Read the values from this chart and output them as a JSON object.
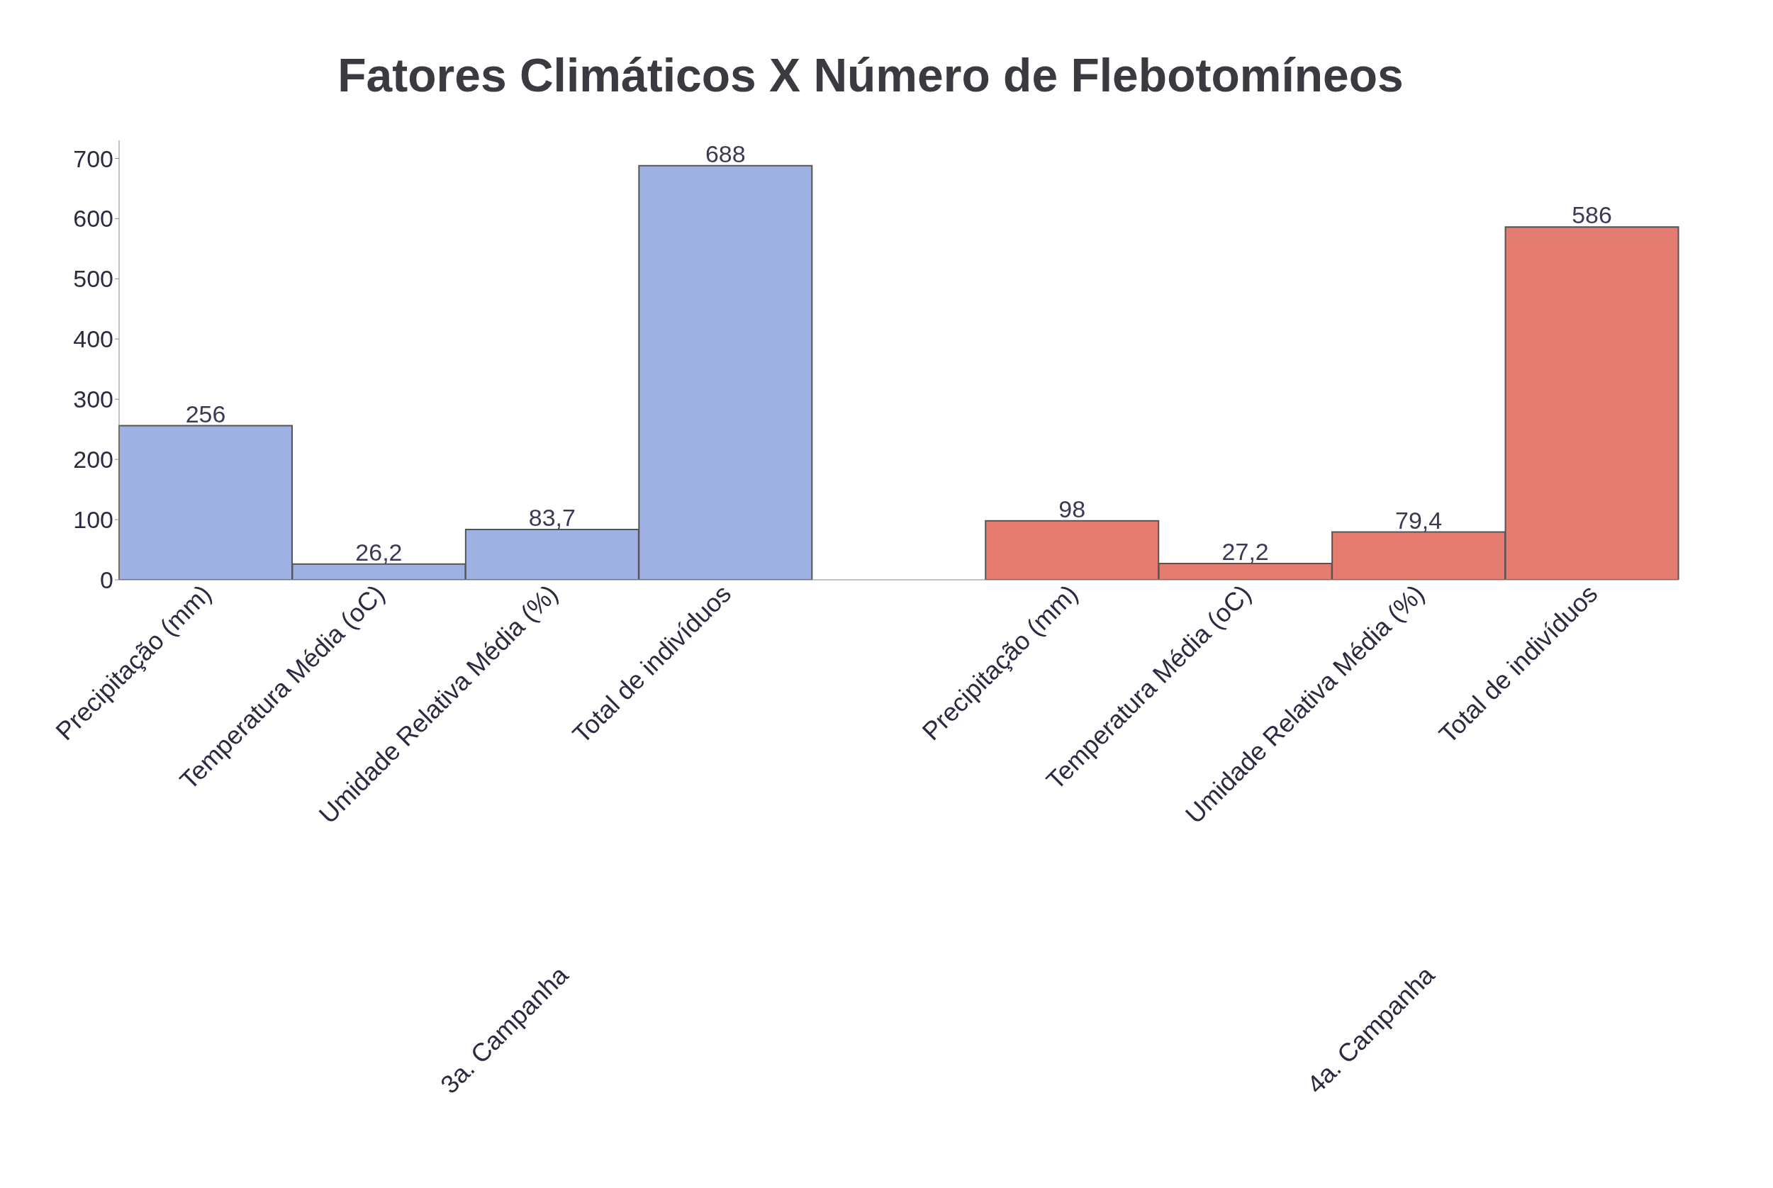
{
  "chart_data": {
    "type": "bar",
    "title": "Fatores Climáticos X Número de Flebotomíneos",
    "categories": [
      "Precipitação (mm)",
      "Temperatura Média (oC)",
      "Umidade Relativa Média (%)",
      "Total de indivíduos",
      null,
      "Precipitação (mm)",
      "Temperatura Média (oC)",
      "Umidade Relativa Média (%)",
      "Total de indivíduos"
    ],
    "series": [
      {
        "color": "#9fb1e3",
        "values": [
          256,
          26.2,
          83.7,
          688,
          null,
          null,
          null,
          null,
          null
        ],
        "value_labels": [
          "256",
          "26,2",
          "83,7",
          "688",
          null,
          null,
          null,
          null,
          null
        ]
      },
      {
        "color": "#e57c72",
        "values": [
          null,
          null,
          null,
          null,
          null,
          98,
          27.2,
          79.4,
          586
        ],
        "value_labels": [
          null,
          null,
          null,
          null,
          null,
          "98",
          "27,2",
          "79,4",
          "586"
        ]
      }
    ],
    "ylim": [
      0,
      730
    ],
    "yticks": [
      0,
      100,
      200,
      300,
      400,
      500,
      600,
      700
    ],
    "grid": false,
    "annotations": [
      "3a. Campanha",
      "4a. Campanha"
    ]
  }
}
